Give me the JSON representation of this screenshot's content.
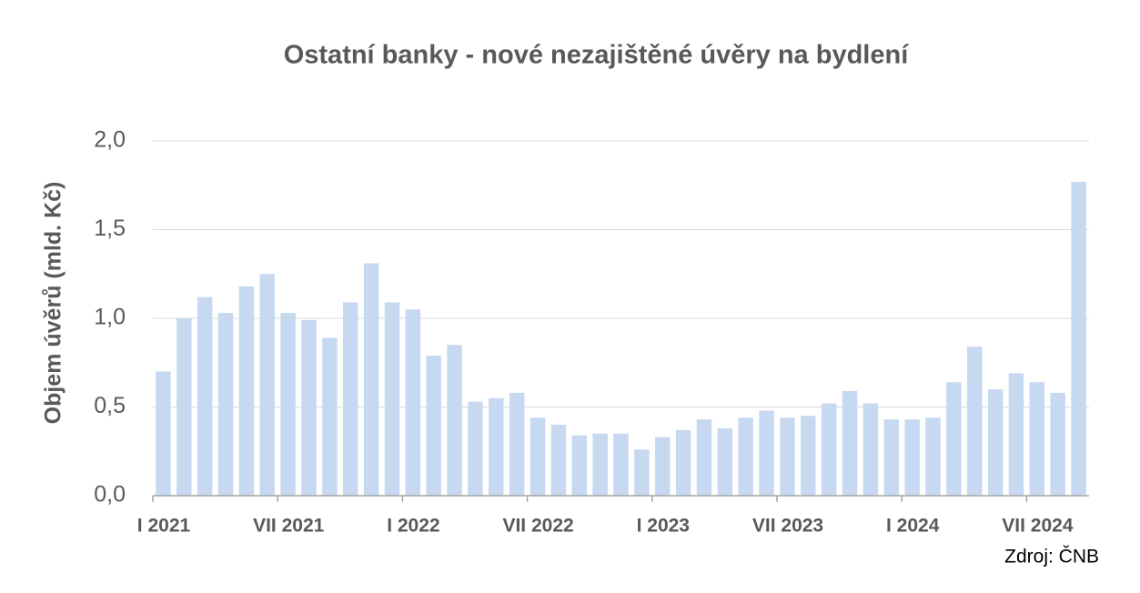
{
  "chart_data": {
    "type": "bar",
    "title": "Ostatní banky - nové nezajištěné úvěry na bydlení",
    "y_label": "Objem úvěrů (mld. Kč)",
    "source": "Zdroj: ČNB",
    "categories": [
      "I 2021",
      null,
      null,
      null,
      null,
      null,
      "VII 2021",
      null,
      null,
      null,
      null,
      null,
      "I 2022",
      null,
      null,
      null,
      null,
      null,
      "VII 2022",
      null,
      null,
      null,
      null,
      null,
      "I 2023",
      null,
      null,
      null,
      null,
      null,
      "VII 2023",
      null,
      null,
      null,
      null,
      null,
      "I 2024",
      null,
      null,
      null,
      null,
      null,
      "VII 2024",
      null,
      null
    ],
    "values": [
      0.7,
      1.0,
      1.12,
      1.03,
      1.18,
      1.25,
      1.03,
      0.99,
      0.89,
      1.09,
      1.31,
      1.09,
      1.05,
      0.79,
      0.85,
      0.53,
      0.55,
      0.58,
      0.44,
      0.4,
      0.34,
      0.35,
      0.35,
      0.26,
      0.33,
      0.37,
      0.43,
      0.38,
      0.44,
      0.48,
      0.44,
      0.45,
      0.52,
      0.59,
      0.52,
      0.43,
      0.43,
      0.44,
      0.64,
      0.84,
      0.6,
      0.69,
      0.64,
      0.58,
      1.77
    ],
    "color": "#c6d9f1",
    "ylim": [
      0,
      2
    ],
    "yticks": [
      {
        "value": 0,
        "label": "0,0"
      },
      {
        "value": 0.5,
        "label": "0,5"
      },
      {
        "value": 1,
        "label": "1,0"
      },
      {
        "value": 1.5,
        "label": "1,5"
      },
      {
        "value": 2,
        "label": "2,0"
      }
    ],
    "grid": true
  }
}
